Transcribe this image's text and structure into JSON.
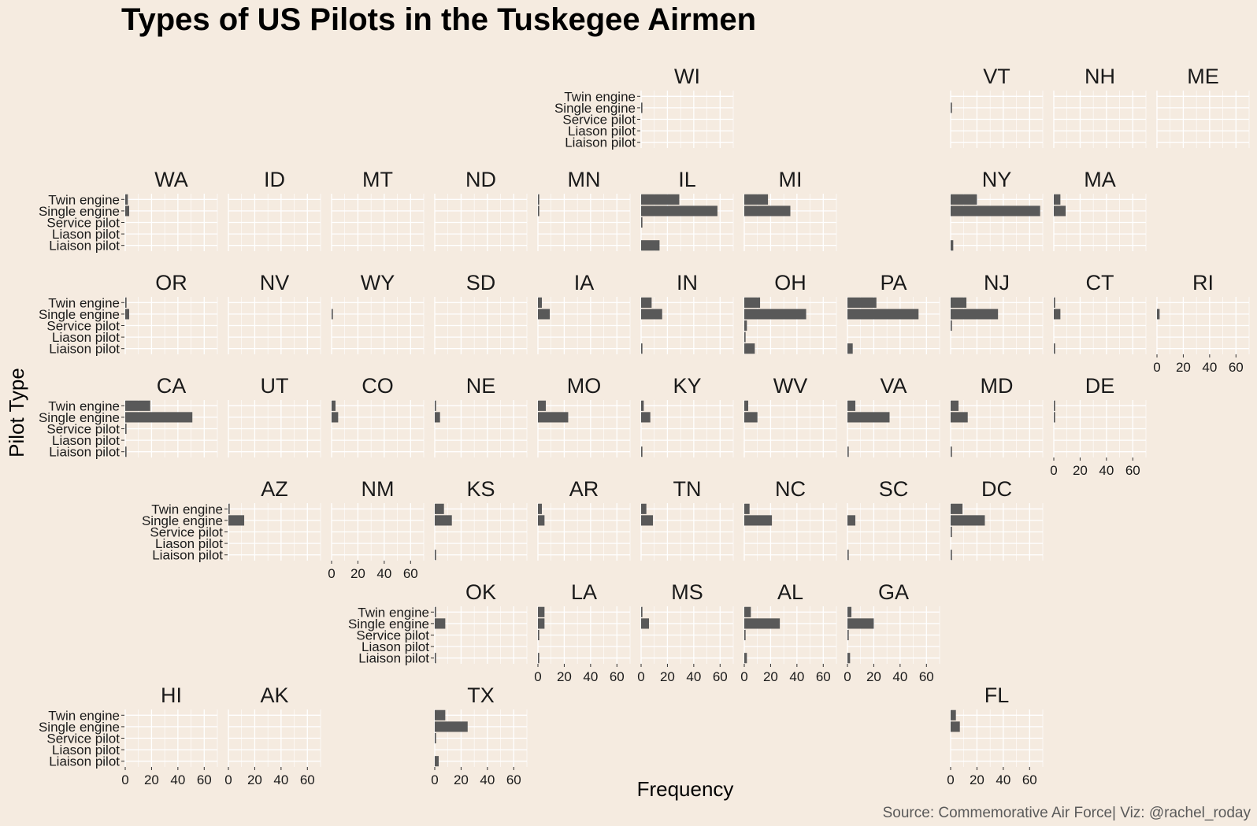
{
  "chart_data": {
    "type": "bar",
    "orientation": "horizontal",
    "layout": "facet grid (US state map)",
    "title": "Types of US Pilots in the Tuskegee Airmen",
    "xlabel": "Frequency",
    "ylabel": "Pilot Type",
    "caption": "Source: Commemorative Air Force| Viz: @rachel_roday",
    "categories": [
      "Twin engine",
      "Single engine",
      "Service pilot",
      "Liason pilot",
      "Liaison pilot"
    ],
    "xlim": [
      0,
      70
    ],
    "xticks": [
      0,
      20,
      40,
      60
    ],
    "grid": true,
    "bar_color": "#595959",
    "grid_color": "#ffffff",
    "background_color": "#f5ebe0",
    "facets": [
      {
        "state": "WI",
        "values": [
          0,
          1,
          0,
          0,
          0
        ]
      },
      {
        "state": "VT",
        "values": [
          0,
          1,
          0,
          0,
          0
        ]
      },
      {
        "state": "NH",
        "values": [
          0,
          0,
          0,
          0,
          0
        ]
      },
      {
        "state": "ME",
        "values": [
          0,
          0,
          0,
          0,
          0
        ]
      },
      {
        "state": "WA",
        "values": [
          2,
          3,
          0,
          0,
          0
        ]
      },
      {
        "state": "ID",
        "values": [
          0,
          0,
          0,
          0,
          0
        ]
      },
      {
        "state": "MT",
        "values": [
          0,
          0,
          0,
          0,
          0
        ]
      },
      {
        "state": "ND",
        "values": [
          0,
          0,
          0,
          0,
          0
        ]
      },
      {
        "state": "MN",
        "values": [
          1,
          1,
          0,
          0,
          0
        ]
      },
      {
        "state": "IL",
        "values": [
          29,
          58,
          1,
          0,
          14
        ]
      },
      {
        "state": "MI",
        "values": [
          18,
          35,
          0,
          0,
          0
        ]
      },
      {
        "state": "NY",
        "values": [
          20,
          68,
          0,
          0,
          2
        ]
      },
      {
        "state": "MA",
        "values": [
          5,
          9,
          0,
          0,
          0
        ]
      },
      {
        "state": "OR",
        "values": [
          1,
          3,
          0,
          0,
          0
        ]
      },
      {
        "state": "NV",
        "values": [
          0,
          0,
          0,
          0,
          0
        ]
      },
      {
        "state": "WY",
        "values": [
          0,
          1,
          0,
          0,
          0
        ]
      },
      {
        "state": "SD",
        "values": [
          0,
          0,
          0,
          0,
          0
        ]
      },
      {
        "state": "IA",
        "values": [
          3,
          9,
          0,
          0,
          0
        ]
      },
      {
        "state": "IN",
        "values": [
          8,
          16,
          0,
          0,
          1
        ]
      },
      {
        "state": "OH",
        "values": [
          12,
          47,
          2,
          1,
          8
        ]
      },
      {
        "state": "PA",
        "values": [
          22,
          54,
          0,
          0,
          4
        ]
      },
      {
        "state": "NJ",
        "values": [
          12,
          36,
          1,
          0,
          0
        ]
      },
      {
        "state": "CT",
        "values": [
          1,
          5,
          0,
          0,
          1
        ]
      },
      {
        "state": "RI",
        "values": [
          0,
          2,
          0,
          0,
          0
        ]
      },
      {
        "state": "CA",
        "values": [
          19,
          51,
          1,
          0,
          1
        ]
      },
      {
        "state": "UT",
        "values": [
          0,
          0,
          0,
          0,
          0
        ]
      },
      {
        "state": "CO",
        "values": [
          3,
          5,
          0,
          0,
          0
        ]
      },
      {
        "state": "NE",
        "values": [
          1,
          4,
          0,
          0,
          0
        ]
      },
      {
        "state": "MO",
        "values": [
          6,
          23,
          0,
          0,
          0
        ]
      },
      {
        "state": "KY",
        "values": [
          2,
          7,
          0,
          0,
          1
        ]
      },
      {
        "state": "WV",
        "values": [
          3,
          10,
          0,
          0,
          0
        ]
      },
      {
        "state": "VA",
        "values": [
          6,
          32,
          0,
          0,
          1
        ]
      },
      {
        "state": "MD",
        "values": [
          6,
          13,
          0,
          0,
          1
        ]
      },
      {
        "state": "DE",
        "values": [
          1,
          1,
          0,
          0,
          0
        ]
      },
      {
        "state": "AZ",
        "values": [
          1,
          12,
          0,
          0,
          0
        ]
      },
      {
        "state": "NM",
        "values": [
          0,
          0,
          0,
          0,
          0
        ]
      },
      {
        "state": "KS",
        "values": [
          7,
          13,
          0,
          0,
          1
        ]
      },
      {
        "state": "AR",
        "values": [
          3,
          5,
          0,
          0,
          0
        ]
      },
      {
        "state": "TN",
        "values": [
          4,
          9,
          0,
          0,
          0
        ]
      },
      {
        "state": "NC",
        "values": [
          4,
          21,
          0,
          0,
          0
        ]
      },
      {
        "state": "SC",
        "values": [
          0,
          6,
          0,
          0,
          1
        ]
      },
      {
        "state": "DC",
        "values": [
          9,
          26,
          1,
          0,
          1
        ]
      },
      {
        "state": "OK",
        "values": [
          1,
          8,
          0,
          0,
          1
        ]
      },
      {
        "state": "LA",
        "values": [
          5,
          5,
          1,
          0,
          1
        ]
      },
      {
        "state": "MS",
        "values": [
          1,
          6,
          0,
          0,
          0
        ]
      },
      {
        "state": "AL",
        "values": [
          5,
          27,
          1,
          0,
          2
        ]
      },
      {
        "state": "GA",
        "values": [
          3,
          20,
          1,
          0,
          2
        ]
      },
      {
        "state": "HI",
        "values": [
          0,
          0,
          0,
          0,
          0
        ]
      },
      {
        "state": "AK",
        "values": [
          0,
          0,
          0,
          0,
          0
        ]
      },
      {
        "state": "TX",
        "values": [
          8,
          25,
          1,
          0,
          3
        ]
      },
      {
        "state": "FL",
        "values": [
          4,
          7,
          0,
          0,
          0
        ]
      }
    ]
  }
}
